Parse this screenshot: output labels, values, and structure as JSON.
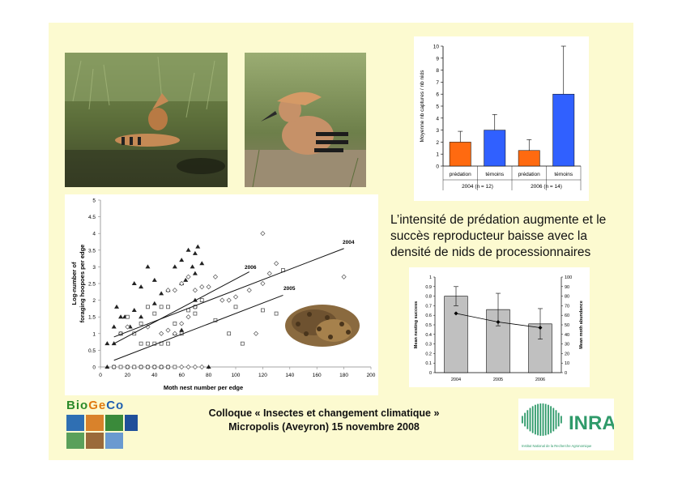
{
  "slide": {
    "main_text": "L’intensité de prédation augmente et le succès reproducteur baisse avec la densité de nids de processionnaires",
    "footer_line1": "Colloque « Insectes et changement climatique »",
    "footer_line2": "Micropolis (Aveyron) 15 novembre 2008"
  },
  "logos": {
    "biogeco_letters": [
      "B",
      "i",
      "o",
      "G",
      "e",
      "C",
      "o"
    ],
    "biogeco_colors": [
      "#2a8a2a",
      "#2a8a2a",
      "#2a8a2a",
      "#e07a10",
      "#e07a10",
      "#1f5fb0",
      "#1f5fb0"
    ],
    "inra_text": "INRA",
    "inra_subtitle": "Institut National de la Recherche Agronomique",
    "inra_color": "#2f9a6a"
  },
  "chart_data": [
    {
      "type": "bar",
      "ylabel": "Moyenne nb captures / nb nids",
      "ylim": [
        0,
        10
      ],
      "yticks": [
        0,
        1,
        2,
        3,
        4,
        5,
        6,
        7,
        8,
        9,
        10
      ],
      "categories": [
        "prédation",
        "témoins",
        "prédation",
        "témoins"
      ],
      "groups": [
        "2004 (n = 12)",
        "2006 (n = 14)"
      ],
      "values": [
        2.0,
        3.0,
        1.3,
        6.0
      ],
      "errors": [
        0.9,
        1.3,
        0.9,
        4.0
      ],
      "colors": [
        "#ff6a10",
        "#3060ff",
        "#ff6a10",
        "#3060ff"
      ],
      "grid": false
    },
    {
      "type": "scatter",
      "xlabel": "Moth nest number per edge",
      "ylabel_line1": "Log-number of",
      "ylabel_line2": "foraging hoopoes per edge",
      "xlim": [
        0,
        200
      ],
      "ylim": [
        0,
        5
      ],
      "xticks": [
        0,
        20,
        40,
        60,
        80,
        100,
        120,
        140,
        160,
        180,
        200
      ],
      "yticks": [
        0,
        0.5,
        1,
        1.5,
        2,
        2.5,
        3,
        3.5,
        4,
        4.5,
        5
      ],
      "series": [
        {
          "name": "2006",
          "marker": "triangle",
          "points": [
            [
              5,
              0.7
            ],
            [
              10,
              0.7
            ],
            [
              10,
              1.2
            ],
            [
              12,
              1.8
            ],
            [
              15,
              1.5
            ],
            [
              15,
              1.0
            ],
            [
              18,
              1.5
            ],
            [
              22,
              1.2
            ],
            [
              25,
              1.7
            ],
            [
              30,
              1.5
            ],
            [
              25,
              2.5
            ],
            [
              30,
              2.4
            ],
            [
              35,
              3.0
            ],
            [
              40,
              2.6
            ],
            [
              40,
              1.9
            ],
            [
              45,
              2.2
            ],
            [
              50,
              2.3
            ],
            [
              55,
              3.0
            ],
            [
              60,
              2.5
            ],
            [
              60,
              3.2
            ],
            [
              63,
              2.6
            ],
            [
              65,
              3.5
            ],
            [
              68,
              3.0
            ],
            [
              70,
              3.4
            ],
            [
              70,
              2.8
            ],
            [
              72,
              3.6
            ],
            [
              75,
              3.1
            ],
            [
              60,
              1.1
            ],
            [
              55,
              1.0
            ],
            [
              70,
              2.0
            ],
            [
              80,
              0.0
            ],
            [
              5,
              0.0
            ],
            [
              25,
              0.0
            ],
            [
              45,
              0.0
            ]
          ]
        },
        {
          "name": "2005",
          "marker": "square",
          "points": [
            [
              10,
              0.0
            ],
            [
              15,
              0.0
            ],
            [
              20,
              0.0
            ],
            [
              25,
              0.0
            ],
            [
              30,
              0.0
            ],
            [
              35,
              0.0
            ],
            [
              40,
              0.0
            ],
            [
              45,
              0.0
            ],
            [
              50,
              0.0
            ],
            [
              55,
              0.0
            ],
            [
              15,
              1.0
            ],
            [
              25,
              1.0
            ],
            [
              30,
              0.7
            ],
            [
              35,
              0.7
            ],
            [
              40,
              0.7
            ],
            [
              45,
              0.7
            ],
            [
              50,
              0.7
            ],
            [
              20,
              1.5
            ],
            [
              30,
              1.3
            ],
            [
              35,
              1.8
            ],
            [
              40,
              1.6
            ],
            [
              45,
              1.8
            ],
            [
              50,
              1.8
            ],
            [
              55,
              1.3
            ],
            [
              60,
              1.0
            ],
            [
              65,
              1.7
            ],
            [
              70,
              1.6
            ],
            [
              70,
              1.8
            ],
            [
              75,
              2.0
            ],
            [
              85,
              1.4
            ],
            [
              95,
              1.0
            ],
            [
              100,
              1.8
            ],
            [
              105,
              0.7
            ],
            [
              120,
              1.7
            ],
            [
              130,
              1.6
            ],
            [
              135,
              2.9
            ]
          ]
        },
        {
          "name": "2004",
          "marker": "diamond",
          "points": [
            [
              10,
              0.0
            ],
            [
              20,
              0.0
            ],
            [
              30,
              0.0
            ],
            [
              35,
              0.0
            ],
            [
              40,
              0.0
            ],
            [
              45,
              0.0
            ],
            [
              50,
              0.0
            ],
            [
              60,
              0.0
            ],
            [
              65,
              0.0
            ],
            [
              70,
              0.0
            ],
            [
              75,
              0.0
            ],
            [
              15,
              1.0
            ],
            [
              20,
              1.2
            ],
            [
              35,
              1.2
            ],
            [
              45,
              1.0
            ],
            [
              50,
              1.1
            ],
            [
              55,
              1.0
            ],
            [
              60,
              1.3
            ],
            [
              65,
              1.5
            ],
            [
              70,
              1.8
            ],
            [
              50,
              2.3
            ],
            [
              55,
              2.3
            ],
            [
              60,
              2.5
            ],
            [
              65,
              2.7
            ],
            [
              70,
              2.3
            ],
            [
              75,
              2.4
            ],
            [
              80,
              2.4
            ],
            [
              85,
              2.7
            ],
            [
              90,
              2.0
            ],
            [
              95,
              2.0
            ],
            [
              100,
              2.1
            ],
            [
              110,
              2.3
            ],
            [
              115,
              1.0
            ],
            [
              120,
              2.5
            ],
            [
              125,
              2.8
            ],
            [
              130,
              3.1
            ],
            [
              120,
              4.0
            ],
            [
              180,
              2.7
            ]
          ]
        }
      ],
      "trend_lines": [
        {
          "name": "2004",
          "from": [
            10,
            0.9
          ],
          "to": [
            180,
            3.55
          ]
        },
        {
          "name": "2006",
          "from": [
            10,
            0.7
          ],
          "to": [
            110,
            2.85
          ]
        },
        {
          "name": "2005",
          "from": [
            10,
            0.2
          ],
          "to": [
            135,
            2.15
          ]
        }
      ],
      "line_labels": [
        "2004",
        "2006",
        "2005"
      ]
    },
    {
      "type": "bar+line",
      "categories": [
        "2004",
        "2005",
        "2006"
      ],
      "bar_values": [
        0.8,
        0.66,
        0.51
      ],
      "bar_errors": [
        0.1,
        0.17,
        0.16
      ],
      "line_values": [
        62,
        53,
        47
      ],
      "ylabel_left": "Mean nesting success",
      "ylabel_right": "Mean moth abundance",
      "ylim_left": [
        0,
        1
      ],
      "yticks_left": [
        0,
        0.1,
        0.2,
        0.3,
        0.4,
        0.5,
        0.6,
        0.7,
        0.8,
        0.9,
        1
      ],
      "ylim_right": [
        0,
        100
      ],
      "yticks_right": [
        0,
        10,
        20,
        30,
        40,
        50,
        60,
        70,
        80,
        90,
        100
      ]
    }
  ]
}
